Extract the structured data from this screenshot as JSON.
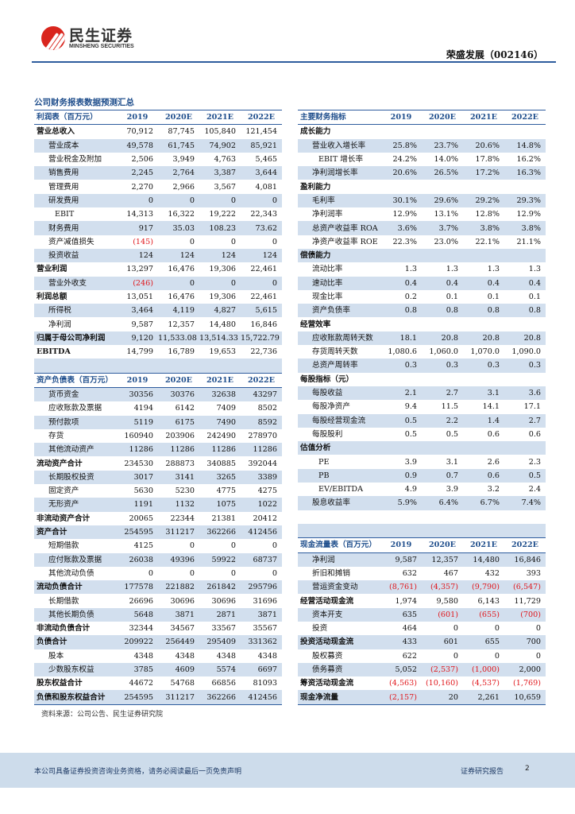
{
  "header": {
    "logo_cn": "民生证券",
    "logo_en": "MINSHENG SECURITIES",
    "stock": "荣盛发展（002146）"
  },
  "title": "公司财务报表数据预测汇总",
  "left_rows": [
    {
      "t": "hdr",
      "c": [
        "利润表（百万元）",
        "2019",
        "2020E",
        "2021E",
        "2022E"
      ]
    },
    {
      "t": "bold",
      "c": [
        "营业总收入",
        "70,912",
        "87,745",
        "105,840",
        "121,454"
      ]
    },
    {
      "t": "norm",
      "c": [
        "营业成本",
        "49,578",
        "61,745",
        "74,902",
        "85,921"
      ]
    },
    {
      "t": "norm",
      "c": [
        "营业税金及附加",
        "2,506",
        "3,949",
        "4,763",
        "5,465"
      ]
    },
    {
      "t": "norm",
      "c": [
        "销售费用",
        "2,245",
        "2,764",
        "3,387",
        "3,644"
      ]
    },
    {
      "t": "norm",
      "c": [
        "管理费用",
        "2,270",
        "2,966",
        "3,567",
        "4,081"
      ]
    },
    {
      "t": "norm",
      "c": [
        "研发费用",
        "0",
        "0",
        "0",
        "0"
      ]
    },
    {
      "t": "eb",
      "c": [
        "EBIT",
        "14,313",
        "16,322",
        "19,222",
        "22,343"
      ]
    },
    {
      "t": "norm",
      "c": [
        "财务费用",
        "917",
        "35.03",
        "108.23",
        "73.62"
      ]
    },
    {
      "t": "norm",
      "c": [
        "资产减值损失",
        "(145)",
        "0",
        "0",
        "0"
      ]
    },
    {
      "t": "norm",
      "c": [
        "投资收益",
        "124",
        "124",
        "124",
        "124"
      ]
    },
    {
      "t": "bold",
      "c": [
        "营业利润",
        "13,297",
        "16,476",
        "19,306",
        "22,461"
      ]
    },
    {
      "t": "norm",
      "c": [
        "营业外收支",
        "(246)",
        "0",
        "0",
        "0"
      ]
    },
    {
      "t": "bold",
      "c": [
        "利润总额",
        "13,051",
        "16,476",
        "19,306",
        "22,461"
      ]
    },
    {
      "t": "norm",
      "c": [
        "所得税",
        "3,464",
        "4,119",
        "4,827",
        "5,615"
      ]
    },
    {
      "t": "norm",
      "c": [
        "净利润",
        "9,587",
        "12,357",
        "14,480",
        "16,846"
      ]
    },
    {
      "t": "bold",
      "c": [
        "归属于母公司净利润",
        "9,120",
        "11,533.08",
        "13,514.33",
        "15,722.79"
      ]
    },
    {
      "t": "bold",
      "c": [
        "EBITDA",
        "14,799",
        "16,789",
        "19,653",
        "22,736"
      ]
    },
    {
      "t": "blank",
      "c": [
        "",
        "",
        "",
        "",
        ""
      ]
    },
    {
      "t": "hdr",
      "c": [
        "资产负债表（百万元）",
        "2019",
        "2020E",
        "2021E",
        "2022E"
      ]
    },
    {
      "t": "norm",
      "c": [
        "货币资金",
        "30356",
        "30376",
        "32638",
        "43297"
      ]
    },
    {
      "t": "norm",
      "c": [
        "应收账款及票据",
        "4194",
        "6142",
        "7409",
        "8502"
      ]
    },
    {
      "t": "norm",
      "c": [
        "预付款项",
        "5119",
        "6175",
        "7490",
        "8592"
      ]
    },
    {
      "t": "norm",
      "c": [
        "存货",
        "160940",
        "203906",
        "242490",
        "278970"
      ]
    },
    {
      "t": "norm",
      "c": [
        "其他流动资产",
        "11286",
        "11286",
        "11286",
        "11286"
      ]
    },
    {
      "t": "bold",
      "c": [
        "流动资产合计",
        "234530",
        "288873",
        "340885",
        "392044"
      ]
    },
    {
      "t": "norm",
      "c": [
        "长期股权投资",
        "3017",
        "3141",
        "3265",
        "3389"
      ]
    },
    {
      "t": "norm",
      "c": [
        "固定资产",
        "5630",
        "5230",
        "4775",
        "4275"
      ]
    },
    {
      "t": "norm",
      "c": [
        "无形资产",
        "1191",
        "1132",
        "1075",
        "1022"
      ]
    },
    {
      "t": "bold",
      "c": [
        "非流动资产合计",
        "20065",
        "22344",
        "21381",
        "20412"
      ]
    },
    {
      "t": "bold",
      "c": [
        "资产合计",
        "254595",
        "311217",
        "362266",
        "412456"
      ]
    },
    {
      "t": "norm",
      "c": [
        "短期借款",
        "4125",
        "0",
        "0",
        "0"
      ]
    },
    {
      "t": "norm",
      "c": [
        "应付账款及票据",
        "26038",
        "49396",
        "59922",
        "68737"
      ]
    },
    {
      "t": "norm",
      "c": [
        "其他流动负债",
        "0",
        "0",
        "0",
        "0"
      ]
    },
    {
      "t": "bold",
      "c": [
        "流动负债合计",
        "177578",
        "221882",
        "261842",
        "295796"
      ]
    },
    {
      "t": "norm",
      "c": [
        "长期借款",
        "26696",
        "30696",
        "30696",
        "31696"
      ]
    },
    {
      "t": "norm",
      "c": [
        "其他长期负债",
        "5648",
        "3871",
        "2871",
        "3871"
      ]
    },
    {
      "t": "bold",
      "c": [
        "非流动负债合计",
        "32344",
        "34567",
        "33567",
        "35567"
      ]
    },
    {
      "t": "bold",
      "c": [
        "负债合计",
        "209922",
        "256449",
        "295409",
        "331362"
      ]
    },
    {
      "t": "norm",
      "c": [
        "股本",
        "4348",
        "4348",
        "4348",
        "4348"
      ]
    },
    {
      "t": "norm",
      "c": [
        "少数股东权益",
        "3785",
        "4609",
        "5574",
        "6697"
      ]
    },
    {
      "t": "bold",
      "c": [
        "股东权益合计",
        "44672",
        "54768",
        "66856",
        "81093"
      ]
    },
    {
      "t": "bold",
      "c": [
        "负债和股东权益合计",
        "254595",
        "311217",
        "362266",
        "412456"
      ]
    }
  ],
  "right_rows": [
    {
      "t": "hdr",
      "c": [
        "主要财务指标",
        "2019",
        "2020E",
        "2021E",
        "2022E"
      ]
    },
    {
      "t": "bold",
      "c": [
        "成长能力",
        "",
        "",
        "",
        ""
      ]
    },
    {
      "t": "norm",
      "c": [
        "营业收入增长率",
        "25.8%",
        "23.7%",
        "20.6%",
        "14.8%"
      ]
    },
    {
      "t": "eb",
      "c": [
        "EBIT 增长率",
        "24.2%",
        "14.0%",
        "17.8%",
        "16.2%"
      ]
    },
    {
      "t": "norm",
      "c": [
        "净利润增长率",
        "20.6%",
        "26.5%",
        "17.2%",
        "16.3%"
      ]
    },
    {
      "t": "bold",
      "c": [
        "盈利能力",
        "",
        "",
        "",
        ""
      ]
    },
    {
      "t": "norm",
      "c": [
        "毛利率",
        "30.1%",
        "29.6%",
        "29.2%",
        "29.3%"
      ]
    },
    {
      "t": "norm",
      "c": [
        "净利润率",
        "12.9%",
        "13.1%",
        "12.8%",
        "12.9%"
      ]
    },
    {
      "t": "norm",
      "c": [
        "总资产收益率 ROA",
        "3.6%",
        "3.7%",
        "3.8%",
        "3.8%"
      ]
    },
    {
      "t": "norm",
      "c": [
        "净资产收益率 ROE",
        "22.3%",
        "23.0%",
        "22.1%",
        "21.1%"
      ]
    },
    {
      "t": "bold",
      "c": [
        "偿债能力",
        "",
        "",
        "",
        ""
      ]
    },
    {
      "t": "norm",
      "c": [
        "流动比率",
        "1.3",
        "1.3",
        "1.3",
        "1.3"
      ]
    },
    {
      "t": "norm",
      "c": [
        "速动比率",
        "0.4",
        "0.4",
        "0.4",
        "0.4"
      ]
    },
    {
      "t": "norm",
      "c": [
        "现金比率",
        "0.2",
        "0.1",
        "0.1",
        "0.1"
      ]
    },
    {
      "t": "norm",
      "c": [
        "资产负债率",
        "0.8",
        "0.8",
        "0.8",
        "0.8"
      ]
    },
    {
      "t": "bold",
      "c": [
        "经营效率",
        "",
        "",
        "",
        ""
      ]
    },
    {
      "t": "norm",
      "c": [
        "应收账款周转天数",
        "18.1",
        "20.8",
        "20.8",
        "20.8"
      ]
    },
    {
      "t": "norm",
      "c": [
        "存货周转天数",
        "1,080.6",
        "1,060.0",
        "1,070.0",
        "1,090.0"
      ]
    },
    {
      "t": "norm",
      "c": [
        "总资产周转率",
        "0.3",
        "0.3",
        "0.3",
        "0.3"
      ]
    },
    {
      "t": "bold",
      "c": [
        "每股指标（元）",
        "",
        "",
        "",
        ""
      ]
    },
    {
      "t": "norm",
      "c": [
        "每股收益",
        "2.1",
        "2.7",
        "3.1",
        "3.6"
      ]
    },
    {
      "t": "norm",
      "c": [
        "每股净资产",
        "9.4",
        "11.5",
        "14.1",
        "17.1"
      ]
    },
    {
      "t": "norm",
      "c": [
        "每股经营现金流",
        "0.5",
        "2.2",
        "1.4",
        "2.7"
      ]
    },
    {
      "t": "norm",
      "c": [
        "每股股利",
        "0.5",
        "0.5",
        "0.6",
        "0.6"
      ]
    },
    {
      "t": "bold",
      "c": [
        "估值分析",
        "",
        "",
        "",
        ""
      ]
    },
    {
      "t": "eb",
      "c": [
        "PE",
        "3.9",
        "3.1",
        "2.6",
        "2.3"
      ]
    },
    {
      "t": "eb",
      "c": [
        "PB",
        "0.9",
        "0.7",
        "0.6",
        "0.5"
      ]
    },
    {
      "t": "eb",
      "c": [
        "EV/EBITDA",
        "4.9",
        "3.9",
        "3.2",
        "2.4"
      ]
    },
    {
      "t": "norm",
      "c": [
        "股息收益率",
        "5.9%",
        "6.4%",
        "6.7%",
        "7.4%"
      ]
    },
    {
      "t": "blank",
      "c": [
        "",
        "",
        "",
        "",
        ""
      ]
    },
    {
      "t": "blank",
      "c": [
        "",
        "",
        "",
        "",
        ""
      ]
    },
    {
      "t": "hdr",
      "c": [
        "现金流量表（百万元）",
        "2019",
        "2020E",
        "2021E",
        "2022E"
      ]
    },
    {
      "t": "norm",
      "c": [
        "净利润",
        "9,587",
        "12,357",
        "14,480",
        "16,846"
      ]
    },
    {
      "t": "norm",
      "c": [
        "折旧和摊销",
        "632",
        "467",
        "432",
        "393"
      ]
    },
    {
      "t": "norm",
      "c": [
        "营运资金变动",
        "(8,761)",
        "(4,357)",
        "(9,790)",
        "(6,547)"
      ]
    },
    {
      "t": "bold",
      "c": [
        "经营活动现金流",
        "1,974",
        "9,580",
        "6,143",
        "11,729"
      ]
    },
    {
      "t": "norm",
      "c": [
        "资本开支",
        "635",
        "(601)",
        "(655)",
        "(700)"
      ]
    },
    {
      "t": "norm",
      "c": [
        "投资",
        "464",
        "0",
        "0",
        "0"
      ]
    },
    {
      "t": "bold",
      "c": [
        "投资活动现金流",
        "433",
        "601",
        "655",
        "700"
      ]
    },
    {
      "t": "norm",
      "c": [
        "股权募资",
        "622",
        "0",
        "0",
        "0"
      ]
    },
    {
      "t": "norm",
      "c": [
        "债务募资",
        "5,052",
        "(2,537)",
        "(1,000)",
        "2,000"
      ]
    },
    {
      "t": "bold",
      "c": [
        "筹资活动现金流",
        "(4,563)",
        "(10,160)",
        "(4,537)",
        "(1,769)"
      ]
    },
    {
      "t": "bold",
      "c": [
        "现金净流量",
        "(2,157)",
        "20",
        "2,261",
        "10,659"
      ]
    }
  ],
  "source": "资料来源：公司公告、民生证券研究院",
  "footer": {
    "disclaimer": "本公司具备证券投资咨询业务资格，请务必阅读最后一页免责声明",
    "report_type": "证券研究报告",
    "page": "2"
  },
  "colors": {
    "accent": "#1f4e8c",
    "row_shade": "#d2dfee",
    "negative": "#e0161b",
    "brand_red": "#d9251d"
  }
}
